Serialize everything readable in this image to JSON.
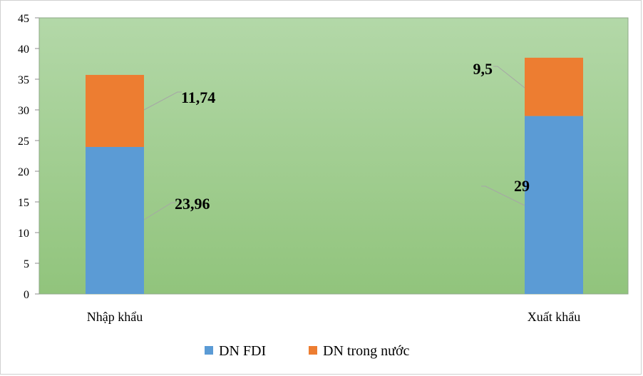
{
  "chart_data": {
    "type": "bar",
    "stacked": true,
    "categories": [
      "Nhập khẩu",
      "Xuất khẩu"
    ],
    "series": [
      {
        "name": "DN FDI",
        "values": [
          23.96,
          29
        ],
        "color": "#5b9bd5",
        "labels": [
          "23,96",
          "29"
        ]
      },
      {
        "name": "DN trong nước",
        "values": [
          11.74,
          9.5
        ],
        "color": "#ed7d31",
        "labels": [
          "11,74",
          "9,5"
        ]
      }
    ],
    "ylim": [
      0,
      45
    ],
    "yticks": [
      0,
      5,
      10,
      15,
      20,
      25,
      30,
      35,
      40,
      45
    ],
    "ytick_labels": [
      "0",
      "5",
      "10",
      "15",
      "20",
      "25",
      "30",
      "35",
      "40",
      "45"
    ],
    "plot_background": {
      "top": "#b3d8a8",
      "bottom": "#91c47c"
    },
    "grid": false,
    "legend": "bottom"
  }
}
